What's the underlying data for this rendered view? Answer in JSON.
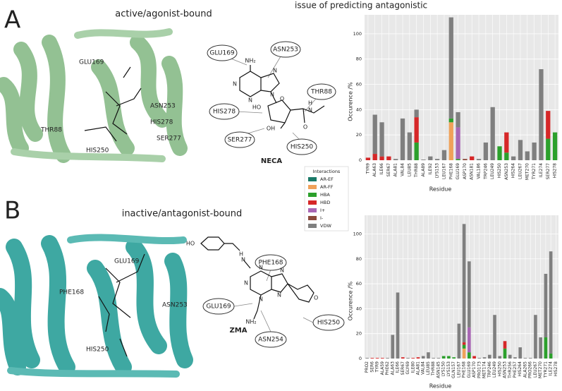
{
  "figure": {
    "panels": [
      {
        "label": "A",
        "caption": "active/agonist-bound",
        "note": "issue of predicting antagonistic",
        "protein_labels": [
          "GLU169",
          "ASN253",
          "HIS278",
          "THR88",
          "SER277",
          "HIS250"
        ],
        "ligand": {
          "name": "NECA",
          "residues": [
            "GLU169",
            "ASN253",
            "THR88",
            "HIS278",
            "SER277",
            "HIS250"
          ],
          "atoms": [
            "NH₂",
            "N",
            "N",
            "N",
            "N",
            "HO",
            "OH",
            "O",
            "O",
            "H",
            "N"
          ]
        }
      },
      {
        "label": "B",
        "caption": "inactive/antagonist-bound",
        "protein_labels": [
          "GLU169",
          "PHE168",
          "ASN253",
          "HIS250"
        ],
        "ligand": {
          "name": "ZMA",
          "residues": [
            "PHE168",
            "GLU169",
            "ASN254",
            "HIS250"
          ],
          "atoms": [
            "HO",
            "H",
            "N",
            "N",
            "N",
            "N",
            "N",
            "N",
            "NH₂",
            "O"
          ]
        }
      }
    ]
  },
  "chart_data": [
    {
      "type": "stacked_bar",
      "ylabel": "Occurence /%",
      "xlabel": "Residue",
      "legend_title": "Interactions",
      "grid": true,
      "ylim": [
        0,
        115
      ],
      "yticks": [
        0,
        20,
        40,
        60,
        80,
        100
      ],
      "categories": [
        "TYR9",
        "ALA63",
        "ILE66",
        "SER67",
        "ALA81",
        "VAL84",
        "LEU85",
        "THR88",
        "ALA89",
        "ILE92",
        "LYS153",
        "LEU167",
        "PHE168",
        "GLU169",
        "ASP170",
        "ASN181",
        "VAL186",
        "TRP246",
        "LEU249",
        "HIS250",
        "ASN253",
        "HIS264",
        "LEU267",
        "MET270",
        "TYR271",
        "ILE274",
        "SER277",
        "HIS278"
      ],
      "series": [
        {
          "name": "AR-EF",
          "color": "#1b7a68",
          "values": [
            0,
            0,
            0,
            0,
            0,
            0,
            0,
            0,
            0,
            0,
            0,
            0,
            0,
            0,
            0,
            0,
            0,
            0,
            0,
            0,
            0,
            0,
            0,
            0,
            0,
            0,
            0,
            0
          ]
        },
        {
          "name": "AR-FF",
          "color": "#f0a15a",
          "values": [
            0,
            0,
            0,
            0,
            0,
            0,
            0,
            0,
            0,
            0,
            0,
            0,
            30,
            0,
            0,
            0,
            0,
            0,
            0,
            0,
            0,
            0,
            0,
            0,
            0,
            0,
            0,
            0
          ]
        },
        {
          "name": "HBA",
          "color": "#2ca02c",
          "values": [
            0,
            0,
            0,
            0,
            0,
            0,
            0,
            14,
            0,
            0,
            0,
            0,
            3,
            1,
            0,
            0,
            0,
            0,
            0,
            11,
            6,
            0,
            0,
            0,
            0,
            0,
            17,
            22
          ]
        },
        {
          "name": "HBD",
          "color": "#d62728",
          "values": [
            2,
            5,
            3,
            3,
            0,
            0,
            0,
            20,
            0,
            0,
            0,
            0,
            0,
            0,
            0,
            3,
            0,
            0,
            0,
            0,
            16,
            0,
            0,
            0,
            0,
            0,
            22,
            0
          ]
        },
        {
          "name": "I+",
          "color": "#a866b4",
          "values": [
            0,
            0,
            0,
            0,
            0,
            0,
            0,
            0,
            0,
            0,
            0,
            0,
            0,
            25,
            0,
            0,
            0,
            0,
            0,
            0,
            0,
            0,
            0,
            0,
            0,
            0,
            0,
            0
          ]
        },
        {
          "name": "I-",
          "color": "#8c4a3c",
          "values": [
            0,
            0,
            0,
            0,
            0,
            0,
            0,
            0,
            0,
            0,
            0,
            0,
            0,
            0,
            1,
            0,
            0,
            0,
            0,
            0,
            0,
            0,
            0,
            0,
            0,
            0,
            0,
            0
          ]
        },
        {
          "name": "VDW",
          "color": "#7f7f7f",
          "values": [
            0,
            31,
            27,
            0,
            1,
            33,
            22,
            6,
            0.5,
            3,
            1,
            8,
            80,
            12,
            0,
            0,
            1,
            14,
            42,
            0,
            0,
            3,
            16,
            7,
            14,
            72,
            0,
            0
          ]
        }
      ]
    },
    {
      "type": "stacked_bar",
      "ylabel": "Occurence /%",
      "xlabel": "Residue",
      "grid": true,
      "ylim": [
        0,
        115
      ],
      "yticks": [
        0,
        20,
        40,
        60,
        80,
        100
      ],
      "categories": [
        "PRO2",
        "SER6",
        "TYR9",
        "ALA59",
        "PHE62",
        "ALA63",
        "ILE66",
        "SER67",
        "GLY69",
        "ILE80",
        "ALA81",
        "VAL84",
        "LEU85",
        "THR88",
        "ASN145",
        "LYS150",
        "LYS153",
        "GLN157",
        "LEU167",
        "PHE168",
        "GLU169",
        "ASP170",
        "PRO173",
        "MET174",
        "TRP246",
        "LEU249",
        "HIS250",
        "ASN253",
        "THR256",
        "PHE257",
        "HIS264",
        "ALA265",
        "PRO266",
        "LEU267",
        "MET270",
        "TYR271",
        "ILE274",
        "HIS278"
      ],
      "series": [
        {
          "name": "AR-EF",
          "color": "#1b7a68",
          "values": [
            0,
            0,
            0,
            0,
            0,
            0,
            0,
            0,
            0,
            0,
            0,
            0,
            0,
            0,
            0,
            0,
            0,
            0,
            0,
            0,
            0,
            0,
            0,
            0,
            0,
            0,
            0,
            0,
            0,
            0,
            0,
            0,
            0,
            0,
            0,
            0,
            0,
            0
          ]
        },
        {
          "name": "AR-FF",
          "color": "#f0a15a",
          "values": [
            0,
            0,
            0,
            0,
            0,
            0,
            0,
            0,
            0,
            0,
            0,
            0,
            0,
            0,
            0,
            0,
            0,
            0,
            0,
            8,
            0,
            0,
            0,
            0,
            0,
            0,
            0,
            0,
            0,
            0,
            0,
            0,
            0,
            0,
            0,
            0,
            0,
            0
          ]
        },
        {
          "name": "HBA",
          "color": "#2ca02c",
          "values": [
            0,
            0,
            0,
            0,
            0,
            0,
            0,
            0,
            0,
            0,
            0,
            0,
            0,
            0,
            0,
            2,
            2,
            1,
            0,
            3,
            5,
            0,
            0,
            0,
            0,
            0,
            0,
            8,
            0,
            0,
            0,
            0,
            0,
            0,
            0,
            17,
            4,
            0
          ]
        },
        {
          "name": "HBD",
          "color": "#d62728",
          "values": [
            0,
            0.5,
            0.5,
            0.5,
            0,
            0,
            0,
            1,
            0,
            0.5,
            1,
            0,
            0,
            0,
            0,
            0,
            0,
            0,
            0,
            2,
            0,
            2,
            0,
            0,
            0,
            0,
            0,
            6,
            0,
            0,
            0,
            0,
            0,
            0,
            0,
            0,
            0,
            0
          ]
        },
        {
          "name": "I+",
          "color": "#a866b4",
          "values": [
            0,
            0,
            0,
            0,
            0,
            0,
            0,
            0,
            0,
            0,
            0,
            0,
            0,
            0,
            0,
            0,
            0,
            0,
            0,
            0,
            20,
            0,
            0,
            0,
            0,
            0,
            0,
            0,
            0,
            0,
            0,
            0,
            0,
            0,
            0,
            0,
            0,
            0
          ]
        },
        {
          "name": "I-",
          "color": "#8c4a3c",
          "values": [
            0,
            0,
            0,
            0,
            0,
            0,
            0,
            0,
            0,
            0,
            0,
            0,
            0,
            0,
            0,
            0,
            0,
            0,
            0,
            0,
            0,
            0,
            0,
            0,
            0,
            0,
            0,
            0,
            0,
            0,
            0,
            0,
            0,
            0,
            0,
            0,
            0,
            0
          ]
        },
        {
          "name": "VDW",
          "color": "#7f7f7f",
          "values": [
            0.5,
            0,
            0,
            0,
            0.5,
            19,
            53,
            0,
            0.5,
            0,
            0,
            2,
            5,
            0.5,
            0.5,
            0,
            0,
            0,
            28,
            95,
            53,
            0,
            0.5,
            1,
            3,
            35,
            2,
            0,
            3,
            1,
            9,
            0.5,
            0.5,
            35,
            17,
            51,
            82,
            0
          ]
        }
      ]
    }
  ]
}
